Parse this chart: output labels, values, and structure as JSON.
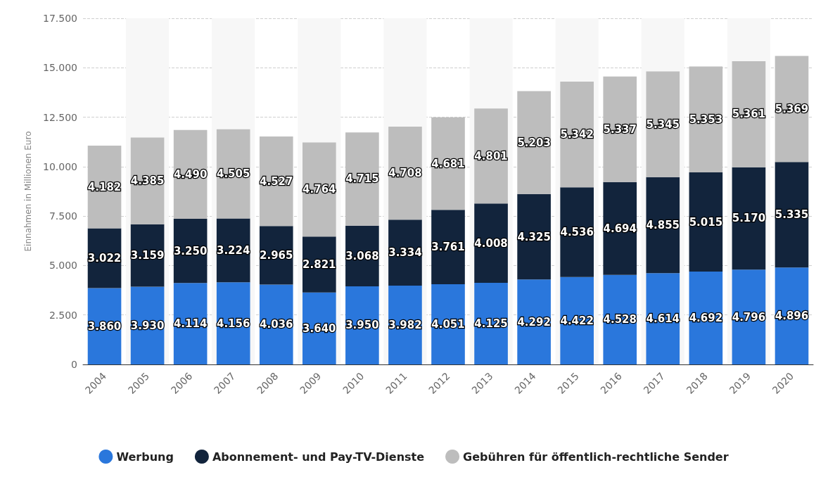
{
  "chart_data": {
    "type": "bar",
    "stacked": true,
    "ylabel": "Einnahmen in Millionen Euro",
    "categories": [
      "2004",
      "2005",
      "2006",
      "2007",
      "2008",
      "2009",
      "2010",
      "2011",
      "2012",
      "2013",
      "2014",
      "2015",
      "2016",
      "2017",
      "2018",
      "2019",
      "2020"
    ],
    "series": [
      {
        "name": "Werbung",
        "color": "#2a77dc",
        "values": [
          3860,
          3930,
          4114,
          4156,
          4036,
          3640,
          3950,
          3982,
          4051,
          4125,
          4292,
          4422,
          4528,
          4614,
          4692,
          4796,
          4896
        ],
        "value_labels": [
          "3.860",
          "3.930",
          "4.114",
          "4.156",
          "4.036",
          "3.640",
          "3.950",
          "3.982",
          "4.051",
          "4.125",
          "4.292",
          "4.422",
          "4.528",
          "4.614",
          "4.692",
          "4.796",
          "4.896"
        ]
      },
      {
        "name": "Abonnement- und Pay-TV-Dienste",
        "color": "#12243c",
        "values": [
          3022,
          3159,
          3250,
          3224,
          2965,
          2821,
          3068,
          3334,
          3761,
          4008,
          4325,
          4536,
          4694,
          4855,
          5015,
          5170,
          5335
        ],
        "value_labels": [
          "3.022",
          "3.159",
          "3.250",
          "3.224",
          "2.965",
          "2.821",
          "3.068",
          "3.334",
          "3.761",
          "4.008",
          "4.325",
          "4.536",
          "4.694",
          "4.855",
          "5.015",
          "5.170",
          "5.335"
        ]
      },
      {
        "name": "Gebühren für öffentlich-rechtliche Sender",
        "color": "#bdbdbd",
        "values": [
          4182,
          4385,
          4490,
          4505,
          4527,
          4764,
          4715,
          4708,
          4681,
          4801,
          5203,
          5342,
          5337,
          5345,
          5353,
          5361,
          5369
        ],
        "value_labels": [
          "4.182",
          "4.385",
          "4.490",
          "4.505",
          "4.527",
          "4.764",
          "4.715",
          "4.708",
          "4.681",
          "4.801",
          "5.203",
          "5.342",
          "5.337",
          "5.345",
          "5.353",
          "5.361",
          "5.369"
        ]
      }
    ],
    "ylim": [
      0,
      17500
    ],
    "yticks": [
      {
        "value": 0,
        "label": "0"
      },
      {
        "value": 2500,
        "label": "2.500"
      },
      {
        "value": 5000,
        "label": "5.000"
      },
      {
        "value": 7500,
        "label": "7.500"
      },
      {
        "value": 10000,
        "label": "10.000"
      },
      {
        "value": 12500,
        "label": "12.500"
      },
      {
        "value": 15000,
        "label": "15.000"
      },
      {
        "value": 17500,
        "label": "17.500"
      }
    ],
    "grid": "y",
    "legend": "bottom"
  }
}
